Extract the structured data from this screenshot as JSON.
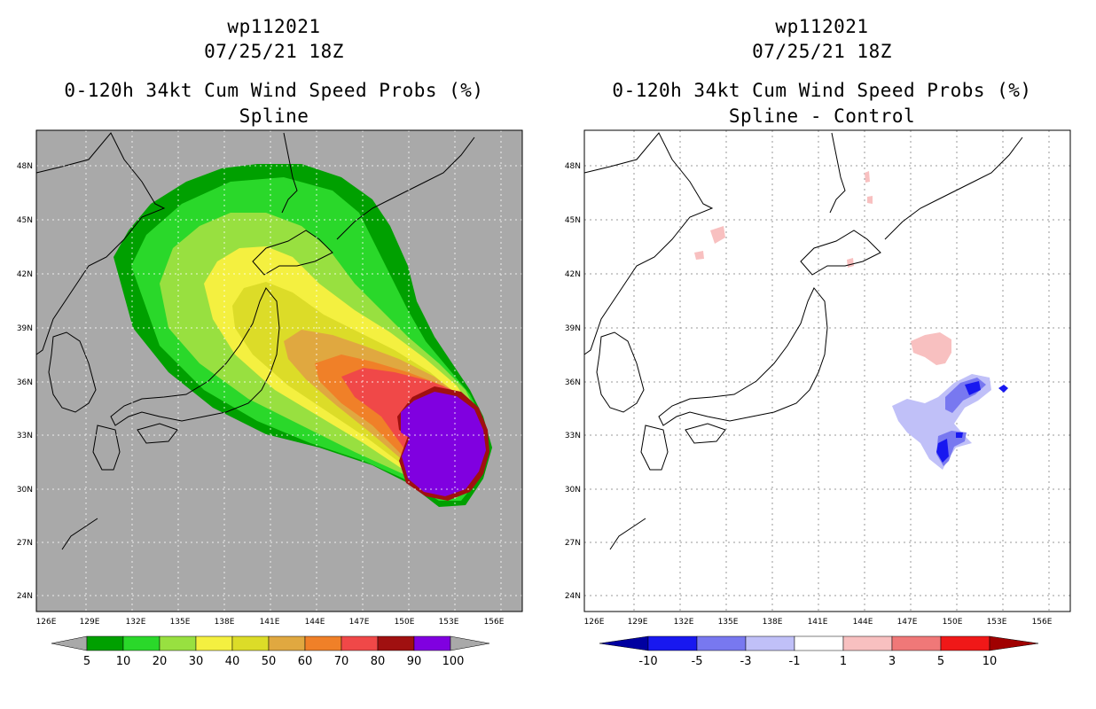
{
  "colors": {
    "land_gray": "#a9a9a9",
    "prob": [
      "#00a000",
      "#2ad82a",
      "#98e040",
      "#f4f040",
      "#dcdc28",
      "#e0a840",
      "#f08028",
      "#f04848",
      "#a01010",
      "#8000e0"
    ],
    "diff": [
      "#0000a0",
      "#1818f0",
      "#7878f0",
      "#c0c0f8",
      "#ffffff",
      "#f8c0c0",
      "#f07878",
      "#f01818",
      "#a00000"
    ]
  },
  "left_panel": {
    "title_line1": "wp112021",
    "title_line2": "07/25/21 18Z",
    "title_line3": "0-120h 34kt Cum Wind Speed Probs (%)",
    "title_line4": "Spline",
    "colorbar_labels": [
      "5",
      "10",
      "20",
      "30",
      "40",
      "50",
      "60",
      "70",
      "80",
      "90",
      "100"
    ]
  },
  "right_panel": {
    "title_line1": "wp112021",
    "title_line2": "07/25/21 18Z",
    "title_line3": "0-120h 34kt Cum Wind Speed Probs (%)",
    "title_line4": "Spline - Control",
    "colorbar_labels": [
      "-10",
      "-5",
      "-3",
      "-1",
      "1",
      "3",
      "5",
      "10"
    ]
  },
  "axes": {
    "lon_labels": [
      "126E",
      "129E",
      "132E",
      "135E",
      "138E",
      "141E",
      "144E",
      "147E",
      "150E",
      "153E",
      "156E"
    ],
    "lat_labels": [
      "48N",
      "45N",
      "42N",
      "39N",
      "36N",
      "33N",
      "30N",
      "27N",
      "24N"
    ]
  }
}
